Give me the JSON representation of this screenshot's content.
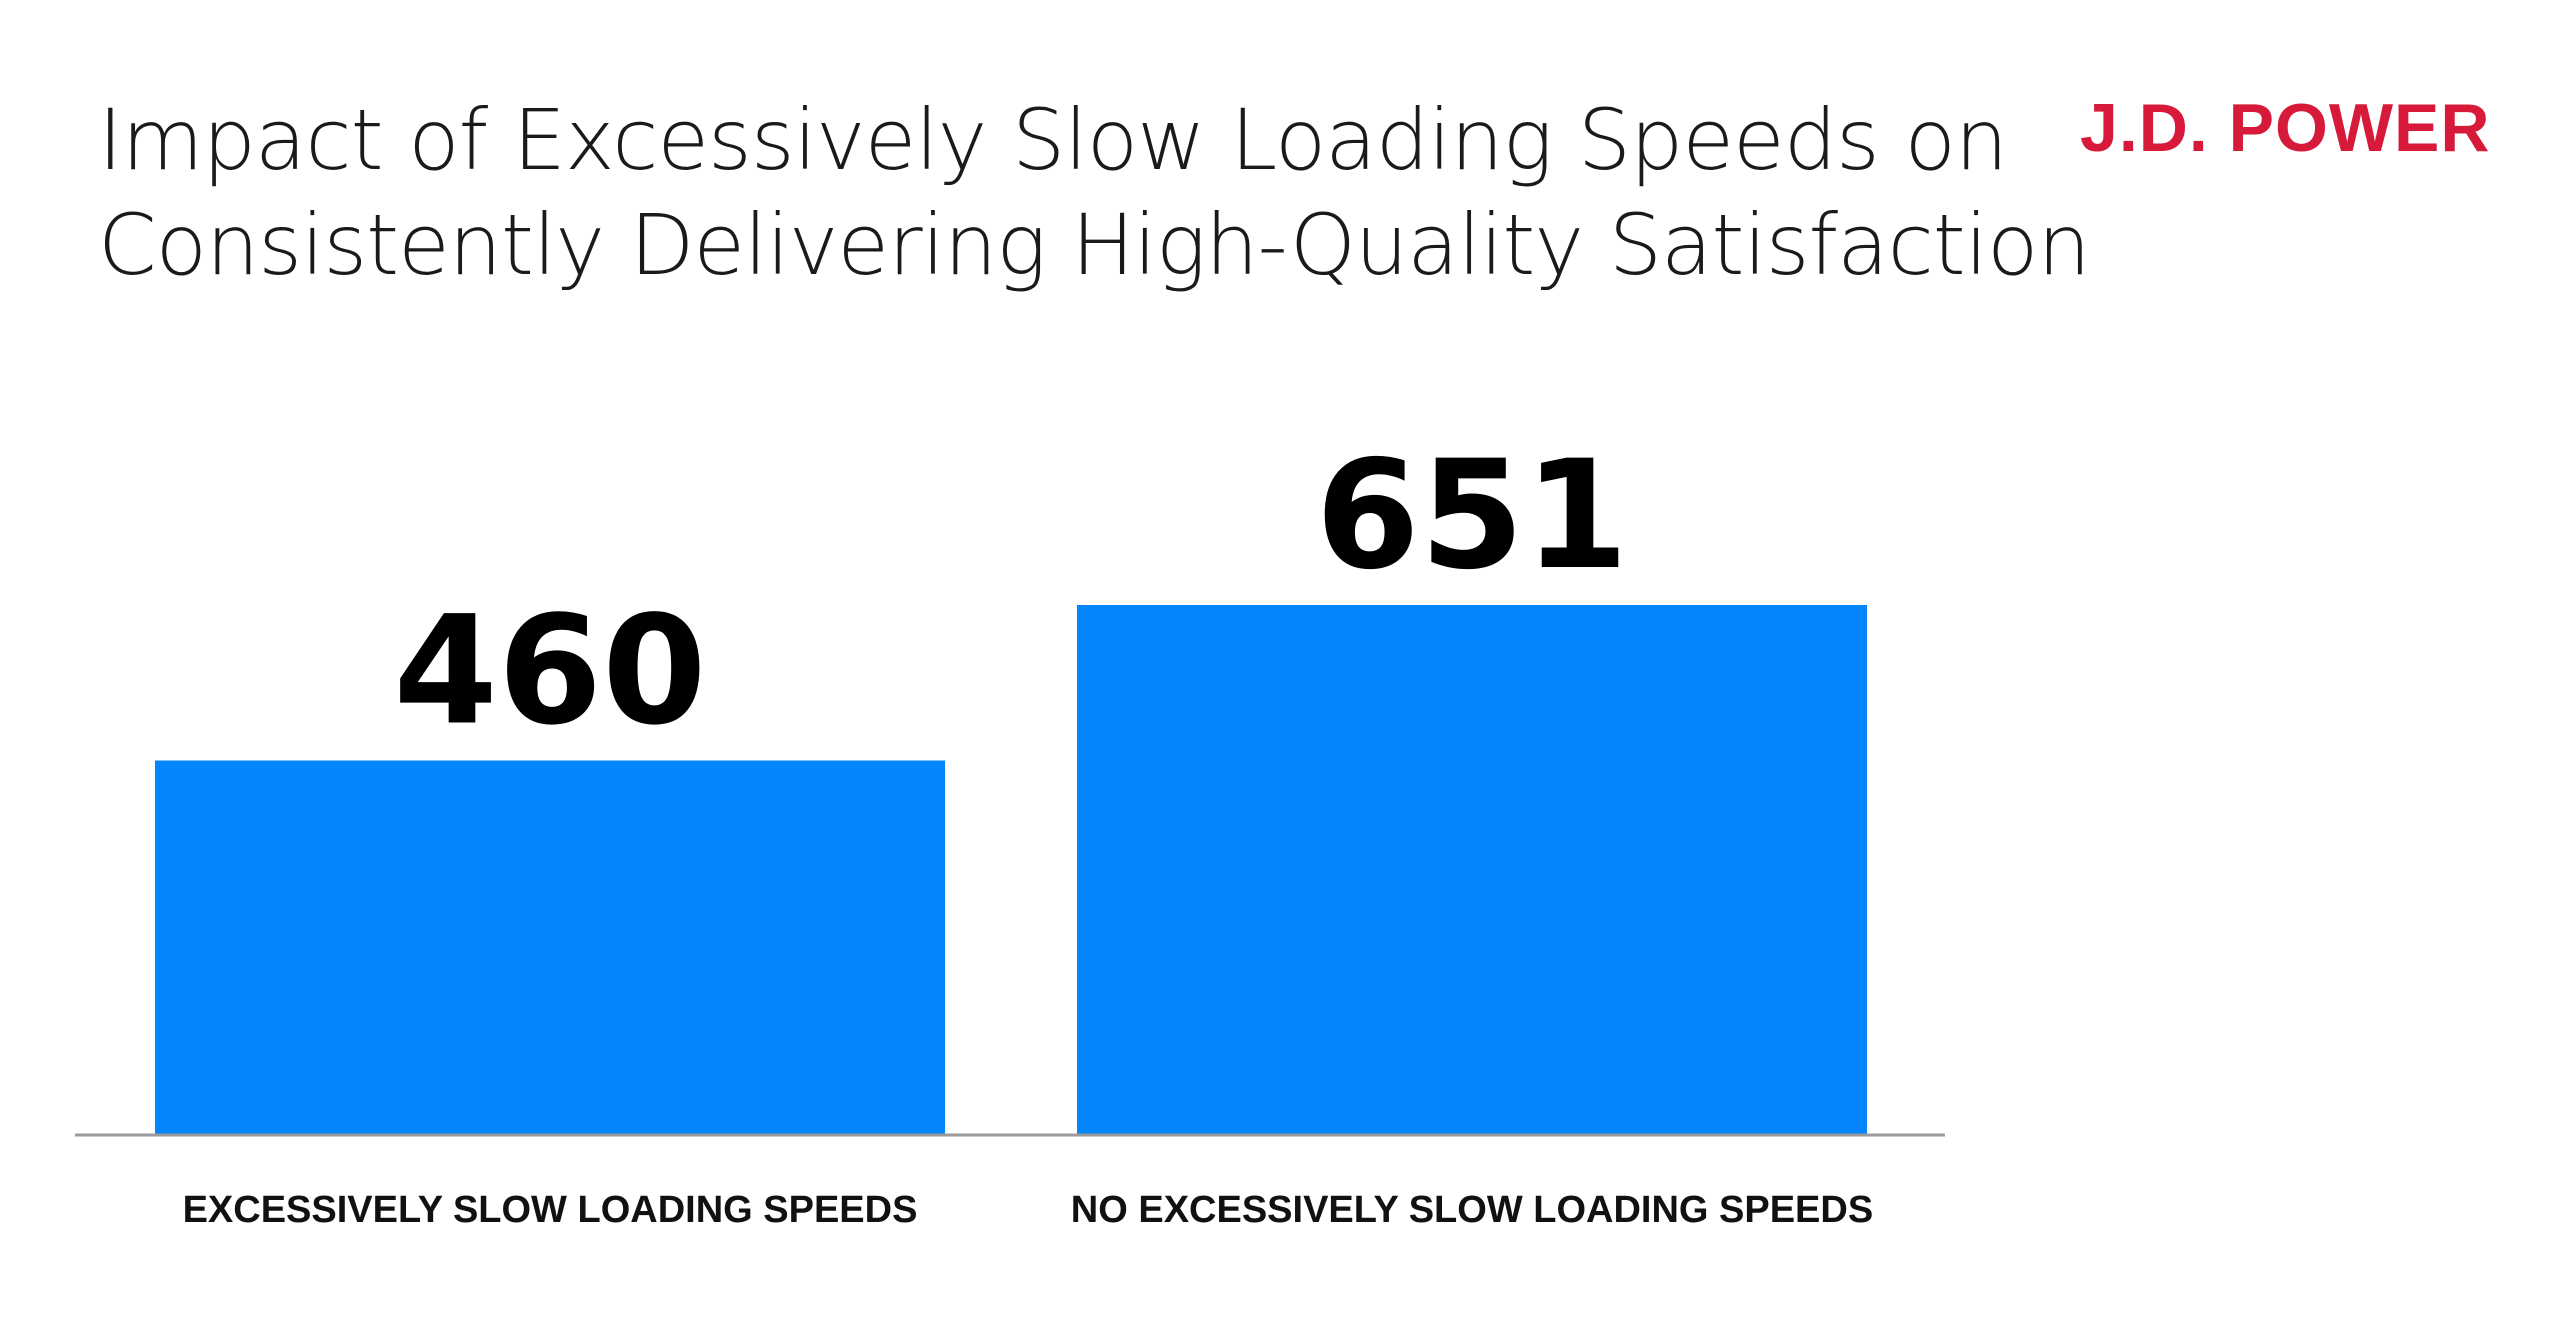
{
  "header": {
    "title_line1": "Impact of Excessively Slow Loading Speeds on",
    "title_line2": "Consistently Delivering High-Quality Satisfaction",
    "logo_text": "J.D. POWER"
  },
  "colors": {
    "bar": "#0385fb",
    "logo": "#d7193a",
    "axis": "#9a9a9a"
  },
  "chart_data": {
    "type": "bar",
    "title": "Impact of Excessively Slow Loading Speeds on Consistently Delivering High-Quality Satisfaction",
    "categories": [
      "EXCESSIVELY SLOW LOADING SPEEDS",
      "NO EXCESSIVELY SLOW LOADING SPEEDS"
    ],
    "values": [
      460,
      651
    ],
    "data_labels": [
      "460",
      "651"
    ],
    "xlabel": "",
    "ylabel": "",
    "ylim": [
      0,
      651
    ],
    "grid": false,
    "legend": "none"
  }
}
